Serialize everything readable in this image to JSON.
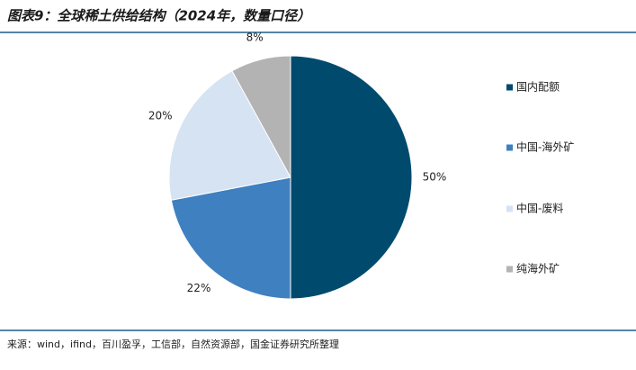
{
  "chart_data": {
    "type": "pie",
    "title": "图表9：全球稀土供给结构（2024年，数量口径）",
    "categories": [
      "国内配额",
      "中国-海外矿",
      "中国-废料",
      "纯海外矿"
    ],
    "values": [
      50,
      22,
      20,
      8
    ],
    "value_labels": [
      "50%",
      "22%",
      "20%",
      "8%"
    ],
    "colors": [
      "#004a6e",
      "#3f80c0",
      "#d5e3f3",
      "#b3b3b3"
    ],
    "legend": "right",
    "source": "来源：wind，ifind，百川盈孚，工信部，自然资源部，国金证券研究所整理"
  }
}
